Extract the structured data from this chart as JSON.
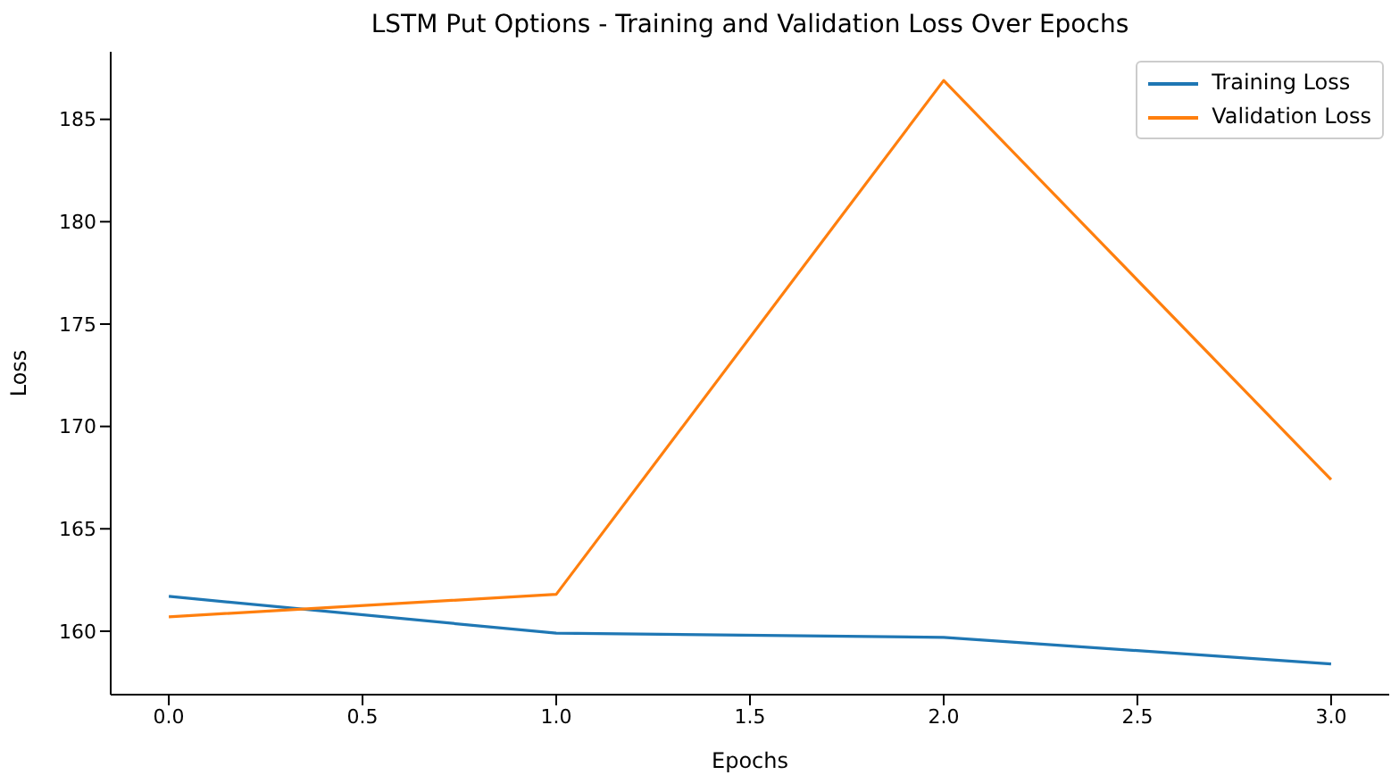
{
  "chart_data": {
    "type": "line",
    "title": "LSTM Put Options - Training and Validation Loss Over Epochs",
    "xlabel": "Epochs",
    "ylabel": "Loss",
    "x": [
      0,
      1,
      2,
      3
    ],
    "series": [
      {
        "name": "Training Loss",
        "color": "#1f77b4",
        "values": [
          161.7,
          159.9,
          159.7,
          158.4
        ]
      },
      {
        "name": "Validation Loss",
        "color": "#ff7f0e",
        "values": [
          160.7,
          161.8,
          186.9,
          167.4
        ]
      }
    ],
    "xlim": [
      -0.15,
      3.15
    ],
    "ylim": [
      156.9,
      188.3
    ],
    "xticks": [
      {
        "value": 0,
        "label": "0.0"
      },
      {
        "value": 0.5,
        "label": "0.5"
      },
      {
        "value": 1,
        "label": "1.0"
      },
      {
        "value": 1.5,
        "label": "1.5"
      },
      {
        "value": 2,
        "label": "2.0"
      },
      {
        "value": 2.5,
        "label": "2.5"
      },
      {
        "value": 3,
        "label": "3.0"
      }
    ],
    "yticks": [
      160,
      165,
      170,
      175,
      180,
      185
    ],
    "grid": false,
    "legend": "top right",
    "marker": "none",
    "line_style": "solid"
  }
}
